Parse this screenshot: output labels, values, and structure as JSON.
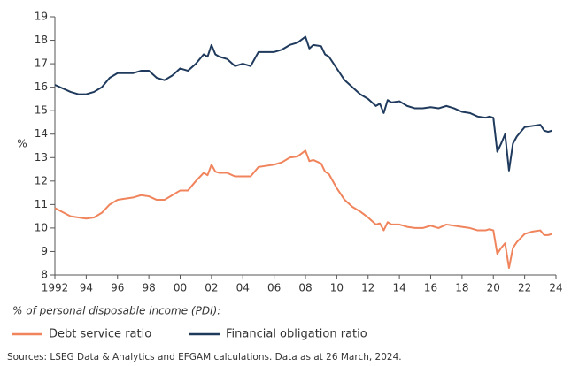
{
  "chart_data": {
    "type": "line",
    "y_label": "%",
    "subtitle": "% of personal disposable income (PDI):",
    "source": "Sources: LSEG Data & Analytics and EFGAM calculations. Data as at 26 March, 2024.",
    "xlim": [
      1992,
      2024
    ],
    "xticks": [
      1992,
      {
        "value": 1994,
        "label": "94"
      },
      {
        "value": 1996,
        "label": "96"
      },
      {
        "value": 1998,
        "label": "98"
      },
      {
        "value": 2000,
        "label": "00"
      },
      {
        "value": 2002,
        "label": "02"
      },
      {
        "value": 2004,
        "label": "04"
      },
      {
        "value": 2006,
        "label": "06"
      },
      {
        "value": 2008,
        "label": "08"
      },
      {
        "value": 2010,
        "label": "10"
      },
      {
        "value": 2012,
        "label": "12"
      },
      {
        "value": 2014,
        "label": "14"
      },
      {
        "value": 2016,
        "label": "16"
      },
      {
        "value": 2018,
        "label": "18"
      },
      {
        "value": 2020,
        "label": "20"
      },
      {
        "value": 2022,
        "label": "22"
      },
      {
        "value": 2024,
        "label": "24"
      }
    ],
    "ylim": [
      8,
      19
    ],
    "yticks": [
      8,
      9,
      10,
      11,
      12,
      13,
      14,
      15,
      16,
      17,
      18,
      19
    ],
    "grid": false,
    "x": [
      1992,
      1993,
      1993.5,
      1994,
      1994.5,
      1995,
      1995.5,
      1996,
      1997,
      1997.5,
      1998,
      1998.5,
      1999,
      1999.5,
      2000,
      2000.5,
      2001,
      2001.5,
      2001.75,
      2002,
      2002.25,
      2002.5,
      2003,
      2003.5,
      2004,
      2004.5,
      2005,
      2005.5,
      2006,
      2006.5,
      2007,
      2007.5,
      2008,
      2008.25,
      2008.5,
      2009,
      2009.25,
      2009.5,
      2010,
      2010.5,
      2011,
      2011.5,
      2012,
      2012.5,
      2012.75,
      2013,
      2013.25,
      2013.5,
      2014,
      2014.5,
      2015,
      2015.5,
      2016,
      2016.5,
      2017,
      2017.5,
      2018,
      2018.5,
      2019,
      2019.5,
      2019.75,
      2020,
      2020.25,
      2020.5,
      2020.75,
      2021,
      2021.25,
      2021.5,
      2022,
      2022.5,
      2023,
      2023.25,
      2023.5,
      2023.75
    ],
    "series": [
      {
        "name": "Debt service ratio",
        "color": "#f0845c",
        "values": [
          10.85,
          10.5,
          10.45,
          10.4,
          10.45,
          10.65,
          11.0,
          11.2,
          11.3,
          11.4,
          11.35,
          11.2,
          11.2,
          11.4,
          11.6,
          11.6,
          12.0,
          12.35,
          12.25,
          12.7,
          12.4,
          12.35,
          12.35,
          12.2,
          12.2,
          12.2,
          12.6,
          12.65,
          12.7,
          12.8,
          13.0,
          13.05,
          13.3,
          12.85,
          12.9,
          12.75,
          12.4,
          12.3,
          11.7,
          11.2,
          10.9,
          10.7,
          10.45,
          10.15,
          10.2,
          9.9,
          10.25,
          10.15,
          10.15,
          10.05,
          10.0,
          10.0,
          10.1,
          10.0,
          10.15,
          10.1,
          10.05,
          10.0,
          9.9,
          9.9,
          9.95,
          9.9,
          8.9,
          9.15,
          9.35,
          8.3,
          9.15,
          9.4,
          9.75,
          9.85,
          9.9,
          9.7,
          9.7,
          9.75
        ]
      },
      {
        "name": "Financial obligation ratio",
        "color": "#1f3a5c",
        "values": [
          16.1,
          15.8,
          15.7,
          15.7,
          15.8,
          16.0,
          16.4,
          16.6,
          16.6,
          16.7,
          16.7,
          16.4,
          16.3,
          16.5,
          16.8,
          16.7,
          17.0,
          17.4,
          17.3,
          17.8,
          17.4,
          17.3,
          17.2,
          16.9,
          17.0,
          16.9,
          17.5,
          17.5,
          17.5,
          17.6,
          17.8,
          17.9,
          18.15,
          17.65,
          17.8,
          17.75,
          17.4,
          17.3,
          16.8,
          16.3,
          16.0,
          15.7,
          15.5,
          15.2,
          15.3,
          14.9,
          15.45,
          15.35,
          15.4,
          15.2,
          15.1,
          15.1,
          15.15,
          15.1,
          15.2,
          15.1,
          14.95,
          14.9,
          14.75,
          14.7,
          14.75,
          14.7,
          13.25,
          13.6,
          14.0,
          12.45,
          13.6,
          13.9,
          14.3,
          14.35,
          14.4,
          14.15,
          14.1,
          14.15
        ]
      }
    ]
  }
}
